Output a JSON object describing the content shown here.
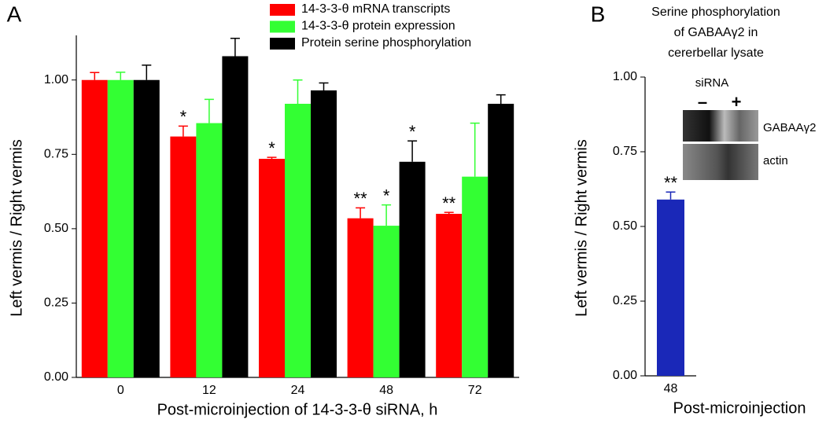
{
  "chart_data": [
    {
      "type": "bar",
      "panel_label": "A",
      "xlabel": "Post-microinjection of 14-3-3-θ siRNA,  h",
      "ylabel": "Left vermis /  Right vermis",
      "categories": [
        "0",
        "12",
        "24",
        "48",
        "72"
      ],
      "series": [
        {
          "name": "14-3-3-θ mRNA transcripts",
          "color": "#ff0000",
          "values": [
            1.0,
            0.81,
            0.735,
            0.535,
            0.55
          ],
          "errors": [
            0.025,
            0.035,
            0.005,
            0.035,
            0.005
          ],
          "significance": [
            null,
            "*",
            "*",
            "**",
            "**"
          ]
        },
        {
          "name": "14-3-3-θ protein expression",
          "color": "#33ff33",
          "values": [
            1.0,
            0.855,
            0.92,
            0.51,
            0.675
          ],
          "errors": [
            0.026,
            0.08,
            0.08,
            0.07,
            0.18
          ],
          "significance": [
            null,
            null,
            null,
            "*",
            null
          ]
        },
        {
          "name": "Protein serine phosphorylation",
          "color": "#000000",
          "values": [
            1.0,
            1.08,
            0.965,
            0.725,
            0.92
          ],
          "errors": [
            0.05,
            0.06,
            0.025,
            0.07,
            0.03
          ],
          "significance": [
            null,
            null,
            null,
            "*",
            null
          ]
        }
      ],
      "ylim": [
        0,
        1.15
      ],
      "yticks": [
        {
          "value": 0,
          "label": "0.00"
        },
        0.25,
        {
          "value": 0.5,
          "label": "0.50"
        },
        0.75,
        {
          "value": 1,
          "label": "1.00"
        }
      ]
    },
    {
      "type": "bar",
      "panel_label": "B",
      "title_lines": [
        "Serine phosphorylation",
        "of GABAAγ2 in",
        "cererbellar lysate"
      ],
      "xlabel": "Post-microinjection",
      "ylabel": "Left vermis / Right vermis",
      "categories": [
        "48"
      ],
      "series": [
        {
          "name": null,
          "color": "#1a28b8",
          "values": [
            0.59
          ],
          "errors": [
            0.025
          ],
          "significance": [
            "**"
          ]
        }
      ],
      "ylim": [
        0,
        1.0
      ],
      "yticks": [
        {
          "value": 0,
          "label": "0.00"
        },
        0.25,
        {
          "value": 0.5,
          "label": "0.50"
        },
        0.75,
        {
          "value": 1,
          "label": "1.00"
        }
      ],
      "inset": {
        "title": "siRNA",
        "lanes": [
          "–",
          "+"
        ],
        "bands": [
          "GABAAγ2",
          "actin"
        ]
      }
    }
  ]
}
